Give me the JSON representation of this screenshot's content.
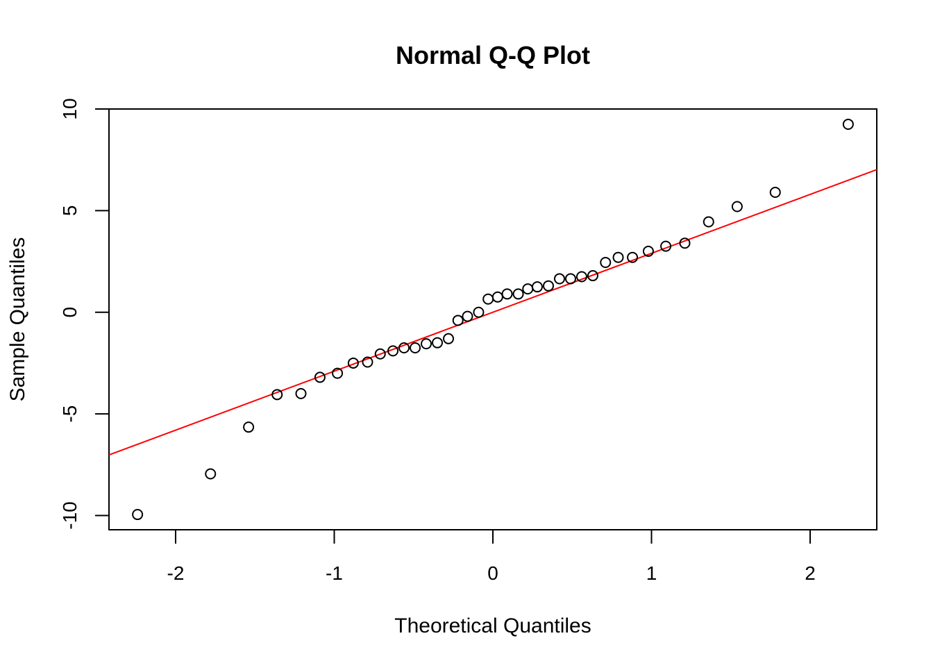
{
  "chart_data": {
    "type": "scatter",
    "title": "Normal Q-Q Plot",
    "xlabel": "Theoretical Quantiles",
    "ylabel": "Sample Quantiles",
    "xlim": [
      -2.42,
      2.42
    ],
    "ylim": [
      -10.7,
      10.0
    ],
    "x_ticks": [
      -2,
      -1,
      0,
      1,
      2
    ],
    "x_tick_labels": [
      "-2",
      "-1",
      "0",
      "1",
      "2"
    ],
    "y_ticks": [
      -10,
      -5,
      0,
      5,
      10
    ],
    "y_tick_labels": [
      "-10",
      "-5",
      "0",
      "5",
      "10"
    ],
    "grid": false,
    "legend": "none",
    "colors": {
      "points": "#000000",
      "reference_line": "#ff0000",
      "axes": "#000000",
      "background": "#ffffff"
    },
    "marker": "open-circle",
    "series": [
      {
        "x": [
          -2.24,
          -1.78,
          -1.54,
          -1.36,
          -1.21,
          -1.09,
          -0.98,
          -0.88,
          -0.79,
          -0.71,
          -0.63,
          -0.56,
          -0.49,
          -0.42,
          -0.35,
          -0.28,
          -0.22,
          -0.16,
          -0.09,
          -0.03,
          0.03,
          0.09,
          0.16,
          0.22,
          0.28,
          0.35,
          0.42,
          0.49,
          0.56,
          0.63,
          0.71,
          0.79,
          0.88,
          0.98,
          1.09,
          1.21,
          1.36,
          1.54,
          1.78,
          2.24
        ],
        "y": [
          -9.95,
          -7.95,
          -5.65,
          -4.05,
          -4.0,
          -3.2,
          -3.0,
          -2.5,
          -2.45,
          -2.05,
          -1.9,
          -1.75,
          -1.75,
          -1.55,
          -1.5,
          -1.3,
          -0.4,
          -0.2,
          0.0,
          0.65,
          0.75,
          0.9,
          0.9,
          1.15,
          1.25,
          1.3,
          1.65,
          1.65,
          1.75,
          1.8,
          2.45,
          2.7,
          2.7,
          3.0,
          3.25,
          3.4,
          4.45,
          5.2,
          5.9,
          9.25
        ]
      }
    ],
    "reference_line": {
      "intercept": 0.0,
      "slope": 2.9
    }
  }
}
